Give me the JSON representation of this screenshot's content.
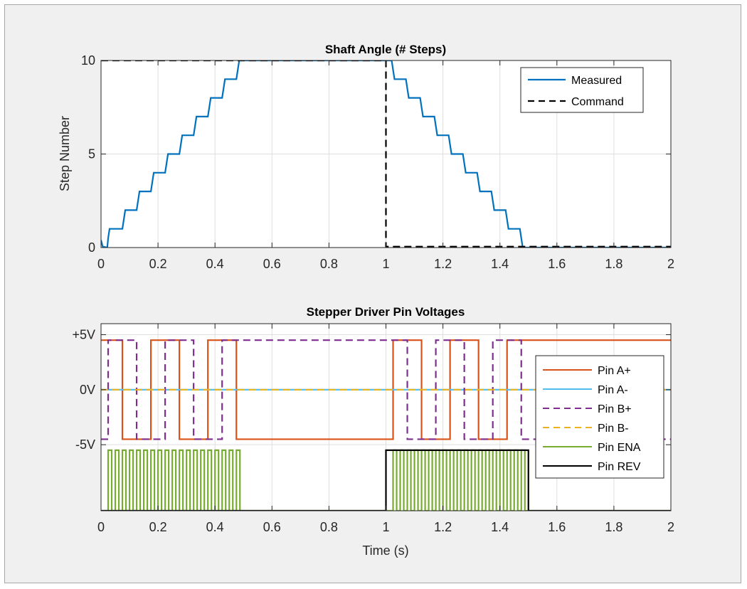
{
  "chart_data": [
    {
      "type": "line",
      "title": "Shaft Angle (# Steps)",
      "xlabel": "",
      "ylabel": "Step Number",
      "xlim": [
        0,
        2
      ],
      "ylim": [
        0,
        10
      ],
      "grid": true,
      "legend_position": "top-right",
      "x_ticks": [
        0,
        0.2,
        0.4,
        0.6,
        0.8,
        1,
        1.2,
        1.4,
        1.6,
        1.8,
        2
      ],
      "x_tick_labels": [
        "0",
        "0.2",
        "0.4",
        "0.6",
        "0.8",
        "1",
        "1.2",
        "1.4",
        "1.6",
        "1.8",
        "2"
      ],
      "y_ticks": [
        0,
        5,
        10
      ],
      "y_tick_labels": [
        "0",
        "5",
        "10"
      ],
      "series": [
        {
          "name": "Measured",
          "color": "#0072bd",
          "style": "solid",
          "points": [
            [
              0,
              0.4
            ],
            [
              0.006,
              0.05
            ],
            [
              0.022,
              0.0
            ],
            [
              0.025,
              0.5
            ],
            [
              0.03,
              1.0
            ],
            [
              0.05,
              1.0
            ],
            [
              0.075,
              1.0
            ],
            [
              0.08,
              1.5
            ],
            [
              0.085,
              2.0
            ],
            [
              0.125,
              2.0
            ],
            [
              0.13,
              2.5
            ],
            [
              0.135,
              3.0
            ],
            [
              0.175,
              3.0
            ],
            [
              0.18,
              3.5
            ],
            [
              0.185,
              4.0
            ],
            [
              0.225,
              4.0
            ],
            [
              0.23,
              4.5
            ],
            [
              0.235,
              5.0
            ],
            [
              0.275,
              5.0
            ],
            [
              0.28,
              5.5
            ],
            [
              0.285,
              6.0
            ],
            [
              0.325,
              6.0
            ],
            [
              0.33,
              6.5
            ],
            [
              0.335,
              7.0
            ],
            [
              0.375,
              7.0
            ],
            [
              0.38,
              7.5
            ],
            [
              0.385,
              8.0
            ],
            [
              0.425,
              8.0
            ],
            [
              0.43,
              8.5
            ],
            [
              0.435,
              9.0
            ],
            [
              0.475,
              9.0
            ],
            [
              0.48,
              9.5
            ],
            [
              0.485,
              10.0
            ],
            [
              1.02,
              10.0
            ],
            [
              1.025,
              9.5
            ],
            [
              1.03,
              9.0
            ],
            [
              1.07,
              9.0
            ],
            [
              1.075,
              8.5
            ],
            [
              1.08,
              8.0
            ],
            [
              1.12,
              8.0
            ],
            [
              1.125,
              7.5
            ],
            [
              1.13,
              7.0
            ],
            [
              1.17,
              7.0
            ],
            [
              1.175,
              6.5
            ],
            [
              1.18,
              6.0
            ],
            [
              1.22,
              6.0
            ],
            [
              1.225,
              5.5
            ],
            [
              1.23,
              5.0
            ],
            [
              1.27,
              5.0
            ],
            [
              1.275,
              4.5
            ],
            [
              1.28,
              4.0
            ],
            [
              1.32,
              4.0
            ],
            [
              1.325,
              3.5
            ],
            [
              1.33,
              3.0
            ],
            [
              1.37,
              3.0
            ],
            [
              1.375,
              2.5
            ],
            [
              1.38,
              2.0
            ],
            [
              1.42,
              2.0
            ],
            [
              1.425,
              1.5
            ],
            [
              1.43,
              1.0
            ],
            [
              1.47,
              1.0
            ],
            [
              1.475,
              0.5
            ],
            [
              1.48,
              0.0
            ],
            [
              2,
              0.0
            ]
          ]
        },
        {
          "name": "Command",
          "color": "#000000",
          "style": "dashed",
          "points": [
            [
              0,
              10
            ],
            [
              1,
              10
            ],
            [
              1,
              0.05
            ],
            [
              2,
              0.05
            ]
          ]
        }
      ]
    },
    {
      "type": "line",
      "title": "Stepper Driver Pin Voltages",
      "xlabel": "Time (s)",
      "ylabel": "",
      "xlim": [
        0,
        2
      ],
      "ylim": [
        -11,
        6
      ],
      "grid": true,
      "legend_position": "right",
      "x_ticks": [
        0,
        0.2,
        0.4,
        0.6,
        0.8,
        1,
        1.2,
        1.4,
        1.6,
        1.8,
        2
      ],
      "x_tick_labels": [
        "0",
        "0.2",
        "0.4",
        "0.6",
        "0.8",
        "1",
        "1.2",
        "1.4",
        "1.6",
        "1.8",
        "2"
      ],
      "y_ticks": [
        5,
        0,
        -5
      ],
      "y_tick_labels": [
        "+5V",
        "0V",
        "-5V"
      ],
      "series": [
        {
          "name": "Pin A+",
          "color": "#d95319",
          "style": "solid",
          "points": [
            [
              0,
              4.5
            ],
            [
              0.075,
              4.5
            ],
            [
              0.075,
              -4.5
            ],
            [
              0.175,
              -4.5
            ],
            [
              0.175,
              4.5
            ],
            [
              0.275,
              4.5
            ],
            [
              0.275,
              -4.5
            ],
            [
              0.375,
              -4.5
            ],
            [
              0.375,
              4.5
            ],
            [
              0.475,
              4.5
            ],
            [
              0.475,
              -4.5
            ],
            [
              1.025,
              -4.5
            ],
            [
              1.025,
              4.5
            ],
            [
              1.125,
              4.5
            ],
            [
              1.125,
              -4.5
            ],
            [
              1.225,
              -4.5
            ],
            [
              1.225,
              4.5
            ],
            [
              1.325,
              4.5
            ],
            [
              1.325,
              -4.5
            ],
            [
              1.425,
              -4.5
            ],
            [
              1.425,
              4.5
            ],
            [
              2,
              4.5
            ]
          ]
        },
        {
          "name": "Pin A-",
          "color": "#4dbeee",
          "style": "solid",
          "points": [
            [
              0,
              0
            ],
            [
              2,
              0
            ]
          ]
        },
        {
          "name": "Pin B+",
          "color": "#7e2f8e",
          "style": "dashed",
          "points": [
            [
              0,
              -4.5
            ],
            [
              0.025,
              -4.5
            ],
            [
              0.025,
              4.5
            ],
            [
              0.125,
              4.5
            ],
            [
              0.125,
              -4.5
            ],
            [
              0.225,
              -4.5
            ],
            [
              0.225,
              4.5
            ],
            [
              0.325,
              4.5
            ],
            [
              0.325,
              -4.5
            ],
            [
              0.425,
              -4.5
            ],
            [
              0.425,
              4.5
            ],
            [
              1.075,
              4.5
            ],
            [
              1.075,
              -4.5
            ],
            [
              1.175,
              -4.5
            ],
            [
              1.175,
              4.5
            ],
            [
              1.275,
              4.5
            ],
            [
              1.275,
              -4.5
            ],
            [
              1.375,
              -4.5
            ],
            [
              1.375,
              4.5
            ],
            [
              1.475,
              4.5
            ],
            [
              1.475,
              -4.5
            ],
            [
              2,
              -4.5
            ]
          ]
        },
        {
          "name": "Pin B-",
          "color": "#edb120",
          "style": "dashed",
          "points": [
            [
              0,
              0
            ],
            [
              2,
              0
            ]
          ]
        },
        {
          "name": "Pin ENA",
          "color": "#77ac30",
          "style": "solid",
          "pulse": {
            "start": 0.025,
            "end": 0.5,
            "period": 0.025,
            "low": -11,
            "high": -5.5,
            "second_start": 1.025,
            "second_end": 1.5
          }
        },
        {
          "name": "Pin REV",
          "color": "#000000",
          "style": "solid",
          "points": [
            [
              0,
              -11
            ],
            [
              1,
              -11
            ],
            [
              1,
              -5.5
            ],
            [
              1.5,
              -5.5
            ],
            [
              1.5,
              -11
            ],
            [
              2,
              -11
            ]
          ]
        }
      ]
    }
  ]
}
